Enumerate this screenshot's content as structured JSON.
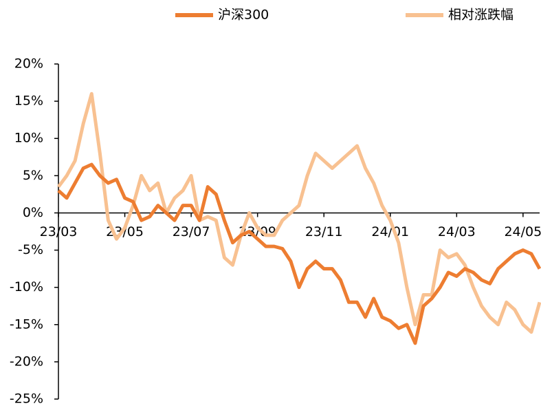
{
  "chart_data": {
    "type": "line",
    "categories": [
      "23/03",
      null,
      null,
      null,
      null,
      null,
      null,
      null,
      "23/05",
      null,
      null,
      null,
      null,
      null,
      null,
      null,
      "23/07",
      null,
      null,
      null,
      null,
      null,
      null,
      null,
      "23/09",
      null,
      null,
      null,
      null,
      null,
      null,
      null,
      "23/11",
      null,
      null,
      null,
      null,
      null,
      null,
      null,
      "24/01",
      null,
      null,
      null,
      null,
      null,
      null,
      null,
      "24/03",
      null,
      null,
      null,
      null,
      null,
      null,
      null,
      "24/05",
      null,
      null
    ],
    "series": [
      {
        "name": "沪深300",
        "color": "#ed7d31",
        "values": [
          3,
          2,
          4,
          6,
          6.5,
          5,
          4,
          4.5,
          2,
          1.5,
          -1,
          -0.5,
          1,
          0,
          -1,
          1,
          1,
          -1,
          3.5,
          2.5,
          -1,
          -4,
          -3,
          -2.5,
          -3.5,
          -4.5,
          -4.5,
          -4.8,
          -6.5,
          -10,
          -7.5,
          -6.5,
          -7.5,
          -7.5,
          -9,
          -12,
          -12,
          -14,
          -11.5,
          -14,
          -14.5,
          -15.5,
          -15,
          -17.5,
          -12.5,
          -11.5,
          -10,
          -8,
          -8.5,
          -7.5,
          -8,
          -9,
          -9.5,
          -7.5,
          -6.5,
          -5.5,
          -5,
          -5.5,
          -7.5
        ]
      },
      {
        "name": "相对涨跌幅",
        "color": "#f8c191",
        "values": [
          3.5,
          5,
          7,
          12,
          16,
          8,
          -1,
          -3.5,
          -2,
          1,
          5,
          3,
          4,
          0,
          2,
          3,
          5,
          -1,
          -0.5,
          -1,
          -6,
          -7,
          -3,
          0,
          -2,
          -3,
          -3,
          -1,
          0,
          1,
          5,
          8,
          7,
          6,
          7,
          8,
          9,
          6,
          4,
          1,
          -1,
          -4,
          -10,
          -15,
          -11,
          -11,
          -5,
          -6,
          -5.5,
          -7,
          -10,
          -12.5,
          -14,
          -15,
          -12,
          -13,
          -15,
          -16,
          -12
        ]
      }
    ],
    "ylim": [
      -25,
      20
    ],
    "yticks": [
      {
        "value": 20,
        "label": "20%"
      },
      {
        "value": 15,
        "label": "15%"
      },
      {
        "value": 10,
        "label": "10%"
      },
      {
        "value": 5,
        "label": "5%"
      },
      {
        "value": 0,
        "label": "0%"
      },
      {
        "value": -5,
        "label": "-5%"
      },
      {
        "value": -10,
        "label": "-10%"
      },
      {
        "value": -15,
        "label": "-15%"
      },
      {
        "value": -20,
        "label": "-20%"
      },
      {
        "value": -25,
        "label": "-25%"
      }
    ],
    "legend": "top"
  }
}
